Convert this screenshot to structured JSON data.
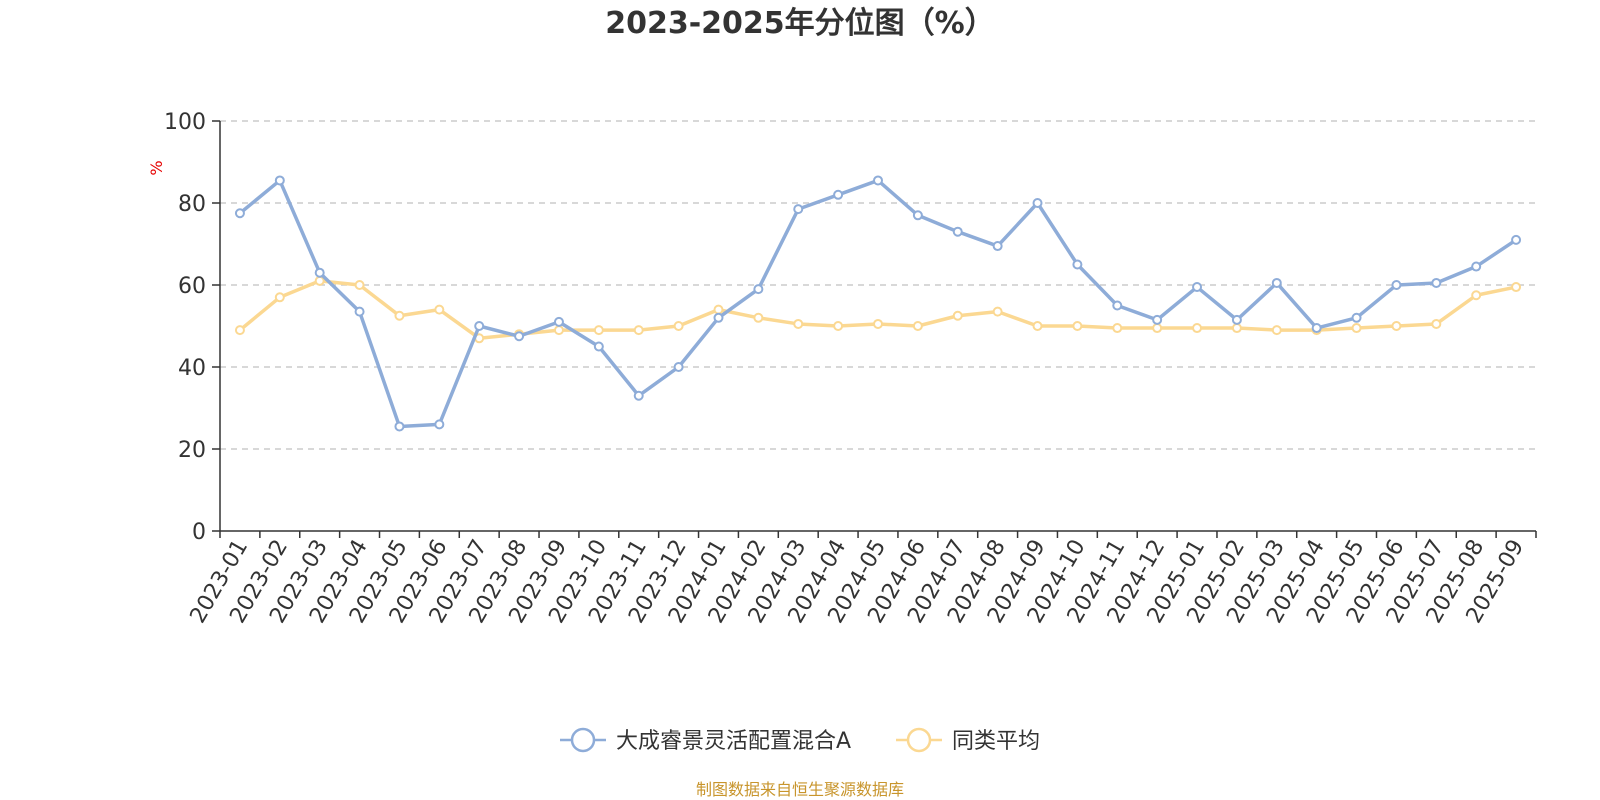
{
  "chart_data": {
    "type": "line",
    "title": "2023-2025年分位图（%）",
    "ylabel": "%",
    "xlabel": "",
    "ylim": [
      0,
      100
    ],
    "yticks": [
      0,
      20,
      40,
      60,
      80,
      100
    ],
    "grid": true,
    "legend_position": "bottom-center",
    "categories": [
      "2023-01",
      "2023-02",
      "2023-03",
      "2023-04",
      "2023-05",
      "2023-06",
      "2023-07",
      "2023-08",
      "2023-09",
      "2023-10",
      "2023-11",
      "2023-12",
      "2024-01",
      "2024-02",
      "2024-03",
      "2024-04",
      "2024-05",
      "2024-06",
      "2024-07",
      "2024-08",
      "2024-09",
      "2024-10",
      "2024-11",
      "2024-12",
      "2025-01",
      "2025-02",
      "2025-03",
      "2025-04",
      "2025-05",
      "2025-06",
      "2025-07",
      "2025-08",
      "2025-09"
    ],
    "series": [
      {
        "name": "大成睿景灵活配置混合A",
        "color": "#8eacd8",
        "values": [
          77.5,
          85.5,
          63,
          53.5,
          25.5,
          26,
          50,
          47.5,
          51,
          45,
          33,
          40,
          52,
          59,
          78.5,
          82,
          85.5,
          77,
          73,
          69.5,
          80,
          65,
          55,
          51.5,
          59.5,
          51.5,
          60.5,
          49.5,
          52,
          60,
          60.5,
          64.5,
          71
        ]
      },
      {
        "name": "同类平均",
        "color": "#fbd892",
        "values": [
          49,
          57,
          61,
          60,
          52.5,
          54,
          47,
          48,
          49,
          49,
          49,
          50,
          54,
          52,
          50.5,
          50,
          50.5,
          50,
          52.5,
          53.5,
          50,
          50,
          49.5,
          49.5,
          49.5,
          49.5,
          49,
          49,
          49.5,
          50,
          50.5,
          57.5,
          59.5
        ]
      }
    ]
  },
  "source_note": "制图数据来自恒生聚源数据库"
}
